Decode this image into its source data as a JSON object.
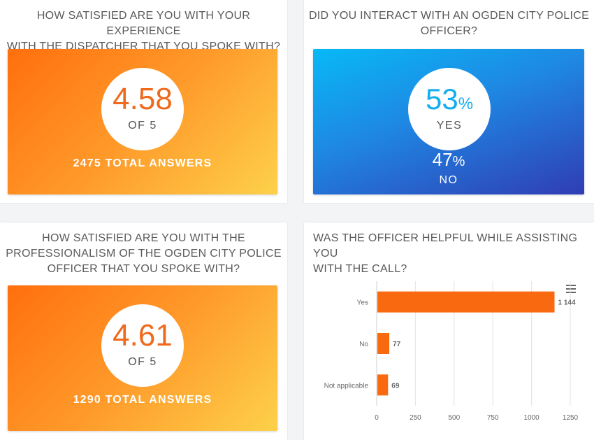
{
  "cards": {
    "dispatcher": {
      "title_line1": "HOW SATISFIED ARE YOU WITH YOUR EXPERIENCE",
      "title_line2": "WITH THE DISPATCHER THAT YOU SPOKE WITH?",
      "score": "4.58",
      "scale": "OF 5",
      "total": "2475 TOTAL ANSWERS"
    },
    "interaction": {
      "title_line1": "DID YOU INTERACT WITH AN OGDEN CITY POLICE",
      "title_line2": "OFFICER?",
      "yes_value": "53",
      "yes_label": "YES",
      "no_value": "47",
      "no_label": "NO",
      "percent_sign": "%"
    },
    "professionalism": {
      "title_line1": "HOW SATISFIED ARE YOU WITH THE",
      "title_line2": "PROFESSIONALISM OF THE OGDEN CITY POLICE",
      "title_line3": "OFFICER THAT YOU SPOKE WITH?",
      "score": "4.61",
      "scale": "OF 5",
      "total": "1290 TOTAL ANSWERS"
    },
    "helpful": {
      "title_line1": "WAS THE OFFICER HELPFUL WHILE ASSISTING YOU",
      "title_line2": "WITH THE CALL?",
      "menu_icon": "hamburger-menu-icon"
    }
  },
  "colors": {
    "bar": "#f96a10",
    "score_text": "#ef6a1c",
    "yes_text": "#12aef0"
  },
  "chart_data": {
    "type": "bar",
    "orientation": "horizontal",
    "categories": [
      "Yes",
      "No",
      "Not applicable"
    ],
    "values": [
      1144,
      77,
      69
    ],
    "value_labels": [
      "1 144",
      "77",
      "69"
    ],
    "xlim": [
      0,
      1250
    ],
    "xticks": [
      "0",
      "250",
      "500",
      "750",
      "1000",
      "1250"
    ],
    "grid": true
  }
}
